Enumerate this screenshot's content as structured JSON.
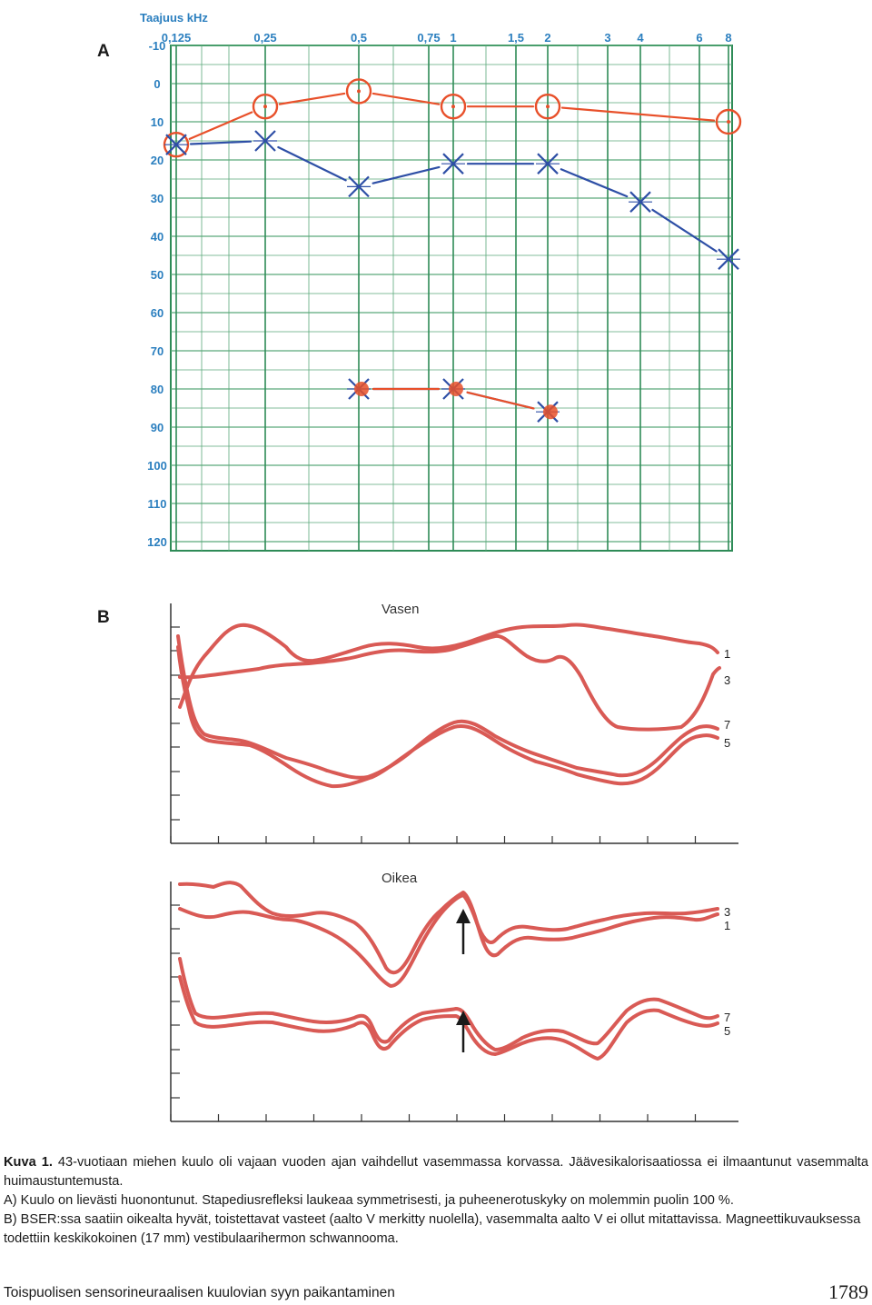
{
  "panel_a": {
    "letter": "A",
    "freq_axis_title": "Taajuus kHz",
    "chart_data": {
      "type": "line",
      "title": "",
      "xlabel": "Taajuus kHz",
      "ylabel": "",
      "frequencies_khz": [
        "0,125",
        "0,25",
        "0,5",
        "0,75",
        "1",
        "1,5",
        "2",
        "3",
        "4",
        "6",
        "8"
      ],
      "db_ticks": [
        "-10",
        "0",
        "10",
        "20",
        "30",
        "40",
        "50",
        "60",
        "70",
        "80",
        "90",
        "100",
        "110",
        "120"
      ],
      "ylim": [
        -10,
        120
      ],
      "y_inverted": true,
      "grid": true,
      "series": [
        {
          "marker": "circle",
          "color": "#e8502a",
          "points": [
            [
              "0,125",
              16
            ],
            [
              "0,25",
              6
            ],
            [
              "0,5",
              2
            ],
            [
              "1",
              6
            ],
            [
              "2",
              6
            ],
            [
              "8",
              10
            ]
          ]
        },
        {
          "marker": "cross",
          "color": "#2e4fa6",
          "points": [
            [
              "0,125",
              16
            ],
            [
              "0,25",
              15
            ],
            [
              "0,5",
              27
            ],
            [
              "1",
              21
            ],
            [
              "2",
              21
            ],
            [
              "4",
              31
            ],
            [
              "8",
              46
            ]
          ]
        },
        {
          "marker": "cross",
          "color": "#2e4fa6",
          "points": [
            [
              "0,5",
              80
            ],
            [
              "1",
              80
            ],
            [
              "2",
              86
            ]
          ]
        },
        {
          "marker": "filled-circle",
          "color": "#e8502a",
          "points": [
            [
              "0,5",
              80
            ],
            [
              "1",
              80
            ],
            [
              "2",
              86
            ]
          ]
        }
      ]
    }
  },
  "panel_b": {
    "letter": "B",
    "left_label": "Vasen",
    "right_label": "Oikea",
    "left_trace_labels": [
      "1",
      "3",
      "7",
      "5"
    ],
    "right_trace_labels": [
      "3",
      "1",
      "7",
      "5"
    ],
    "trace_color": "#d95a55",
    "arrow_icon": "arrow-up-icon"
  },
  "caption": {
    "bold_label": "Kuva 1.",
    "line1": "43-vuotiaan miehen kuulo oli vajaan vuoden ajan vaihdellut vasemmassa korvassa. Jäävesikalorisaatiossa ei ilmaantunut vasemmalta huimaustuntemusta.",
    "line2": "A) Kuulo on lievästi huonontunut. Stapediusrefleksi laukeaa symmetrisesti, ja puheenerotuskyky on molemmin puolin 100 %.",
    "line3": "B) BSER:ssa saatiin oikealta hyvät, toistettavat vasteet (aalto V merkitty nuolella), vasemmalta aalto V ei ollut mitattavissa. Magneettikuvauksessa todettiin keskikokoinen (17 mm) vestibulaarihermon schwannooma."
  },
  "footer": {
    "title": "Toispuolisen sensorineuraalisen kuulovian syyn paikantaminen",
    "page_number": "1789"
  }
}
